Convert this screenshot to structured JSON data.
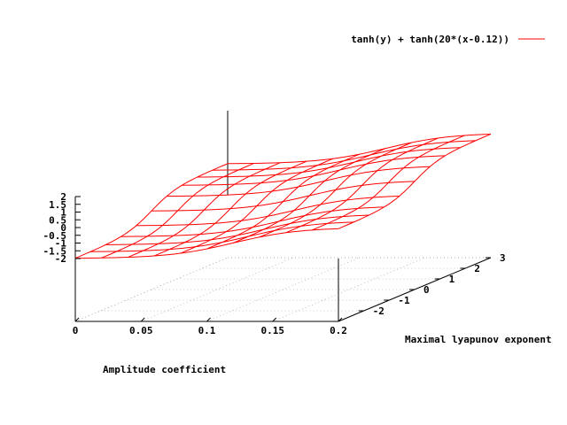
{
  "chart_data": {
    "type": "surface",
    "function": "tanh(y) + tanh(20*(x-0.12))",
    "legend": [
      {
        "label": "tanh(y) + tanh(20*(x-0.12))",
        "color": "#ff0000"
      }
    ],
    "x": {
      "label": "Amplitude coefficient",
      "range": [
        0,
        0.2
      ],
      "ticks": [
        0,
        0.05,
        0.1,
        0.15,
        0.2
      ],
      "tick_labels": [
        "0",
        "0.05",
        "0.1",
        "0.15",
        "0.2"
      ]
    },
    "y": {
      "label": "Maximal lyapunov exponent",
      "range": [
        -3,
        3
      ],
      "ticks": [
        -2,
        -1,
        0,
        1,
        2,
        3
      ],
      "tick_labels": [
        "-2",
        "-1",
        "0",
        "1",
        "2",
        "3"
      ]
    },
    "z": {
      "range": [
        -2,
        2
      ],
      "ticks": [
        -2,
        -1.5,
        -1,
        -0.5,
        0,
        0.5,
        1,
        1.5,
        2
      ],
      "tick_labels": [
        "-2",
        "-1.5",
        "-1",
        "-0.5",
        "0",
        "0.5",
        "1",
        "1.5",
        "2"
      ]
    },
    "grid": true,
    "legend_position": "top-right",
    "surface_color": "#ff0000",
    "mesh_samples": 10
  }
}
